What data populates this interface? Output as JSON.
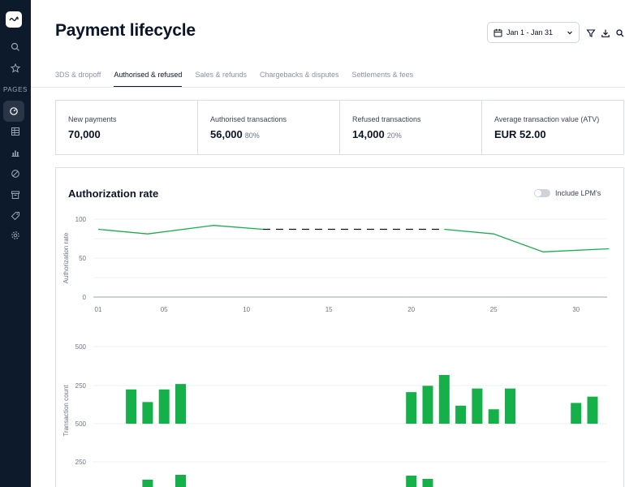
{
  "sidebar": {
    "pages_label": "PAGES",
    "top_icons": [
      "search-icon",
      "star-icon"
    ],
    "page_icons": [
      "dashboard-icon",
      "table-icon",
      "bar-chart-icon",
      "blocked-icon",
      "archive-icon",
      "tag-icon",
      "settings-icon"
    ],
    "active_page": "dashboard-icon"
  },
  "header": {
    "title": "Payment lifecycle",
    "date_range": "Jan 1 - Jan 31",
    "icons": [
      "filter-icon",
      "download-icon",
      "search-icon"
    ]
  },
  "tabs": [
    {
      "label": "3DS & dropoff",
      "active": false
    },
    {
      "label": "Authorised  & refused",
      "active": true
    },
    {
      "label": "Sales & refunds",
      "active": false
    },
    {
      "label": "Chargebacks & disputes",
      "active": false
    },
    {
      "label": "Settlements & fees",
      "active": false
    }
  ],
  "metrics": [
    {
      "label": "New payments",
      "value": "70,000",
      "pct": ""
    },
    {
      "label": "Authorised transactions",
      "value": "56,000",
      "pct": "80%"
    },
    {
      "label": "Refused transactions",
      "value": "14,000",
      "pct": "20%"
    },
    {
      "label": "Average transaction value (ATV)",
      "value": "EUR 52.00",
      "pct": ""
    }
  ],
  "card": {
    "title": "Authorization rate",
    "toggle_label": "Include LPM's",
    "toggle_on": false
  },
  "colors": {
    "accent": "#16b04a",
    "sidebar": "#0d1a2b",
    "text": "#0b1529"
  },
  "chart_data": [
    {
      "type": "line",
      "ylabel": "Authorization rate",
      "ylim": [
        0,
        100
      ],
      "yticks": [
        0,
        50,
        100
      ],
      "xticks": [
        "01",
        "05",
        "10",
        "15",
        "20",
        "25",
        "30"
      ],
      "xlim": [
        1,
        32
      ],
      "series": [
        {
          "style": "solid",
          "x": [
            1,
            4,
            8,
            11
          ],
          "y": [
            87,
            81,
            92,
            87
          ]
        },
        {
          "style": "dashed",
          "x": [
            11,
            22
          ],
          "y": [
            87,
            87
          ]
        },
        {
          "style": "solid",
          "x": [
            22,
            25,
            28,
            32
          ],
          "y": [
            87,
            81,
            58,
            62
          ]
        }
      ]
    },
    {
      "type": "bar",
      "ylabel": "Transaction count",
      "yticks_upper": [
        "500",
        "250",
        "500"
      ],
      "yticks_lower": [
        "250"
      ],
      "ylim": [
        0,
        500
      ],
      "bars": [
        {
          "x": 3,
          "value": 190
        },
        {
          "x": 4,
          "value": 120
        },
        {
          "x": 5,
          "value": 190
        },
        {
          "x": 6,
          "value": 220
        },
        {
          "x": 20,
          "value": 175
        },
        {
          "x": 21,
          "value": 210
        },
        {
          "x": 22,
          "value": 270
        },
        {
          "x": 23,
          "value": 100
        },
        {
          "x": 24,
          "value": 195
        },
        {
          "x": 25,
          "value": 80
        },
        {
          "x": 26,
          "value": 195
        },
        {
          "x": 30,
          "value": 115
        },
        {
          "x": 31,
          "value": 150
        }
      ],
      "lower_bars": [
        {
          "x": 4,
          "value": 45
        },
        {
          "x": 6,
          "value": 75
        },
        {
          "x": 20,
          "value": 70
        },
        {
          "x": 21,
          "value": 50
        }
      ]
    }
  ]
}
